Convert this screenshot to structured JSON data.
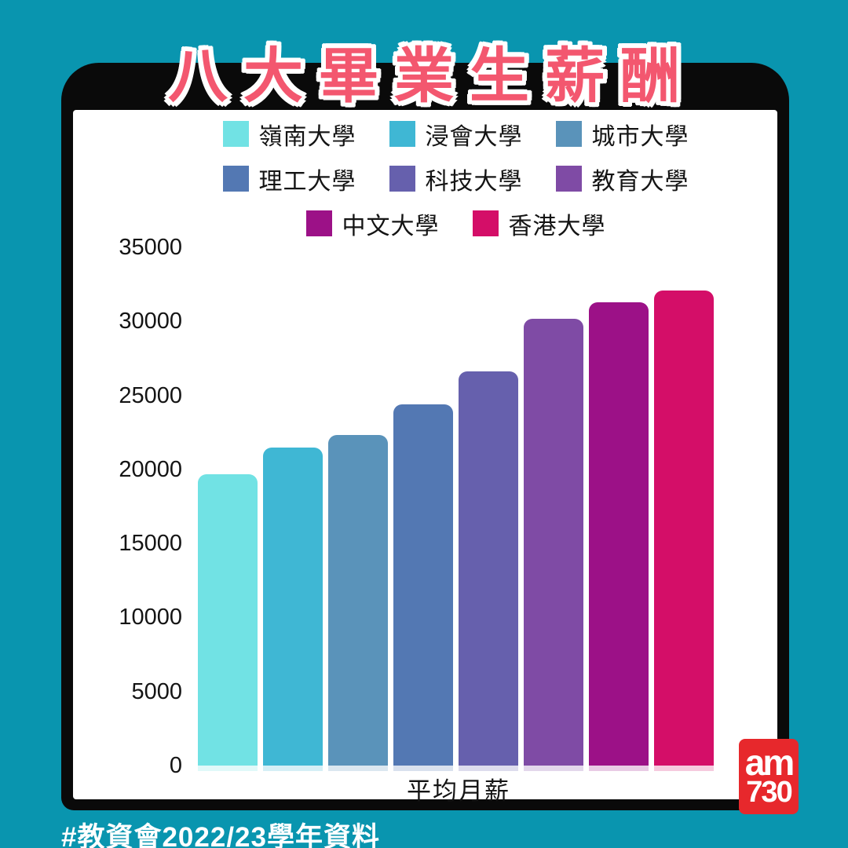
{
  "page": {
    "background_color": "#0995AF",
    "frame_color": "#0A0A0A",
    "panel_color": "#FFFFFF"
  },
  "header": {
    "title": "八大畢業生薪酬",
    "title_color": "#F3576F"
  },
  "footer": {
    "source_note": "#教資會2022/23學年資料"
  },
  "logo": {
    "line1": "am",
    "line2": "730",
    "bg_color": "#E7282C"
  },
  "chart_data": {
    "type": "bar",
    "title": "八大畢業生薪酬",
    "categories": [
      "嶺南大學",
      "浸會大學",
      "城市大學",
      "理工大學",
      "科技大學",
      "教育大學",
      "中文大學",
      "香港大學"
    ],
    "values": [
      19700,
      21500,
      22300,
      24400,
      26600,
      30200,
      31300,
      32100
    ],
    "bar_colors": [
      "#71E2E4",
      "#3FB7D4",
      "#5A93BA",
      "#5378B3",
      "#6660AD",
      "#7F4BA5",
      "#9C1187",
      "#D40E68"
    ],
    "xlabel": "平均月薪",
    "ylabel": "",
    "ylim": [
      0,
      35000
    ],
    "ytick_step": 5000,
    "yticks": [
      0,
      5000,
      10000,
      15000,
      20000,
      25000,
      30000,
      35000
    ],
    "grid": false,
    "legend_position": "top",
    "legend_wrap": [
      3,
      3,
      2
    ]
  }
}
